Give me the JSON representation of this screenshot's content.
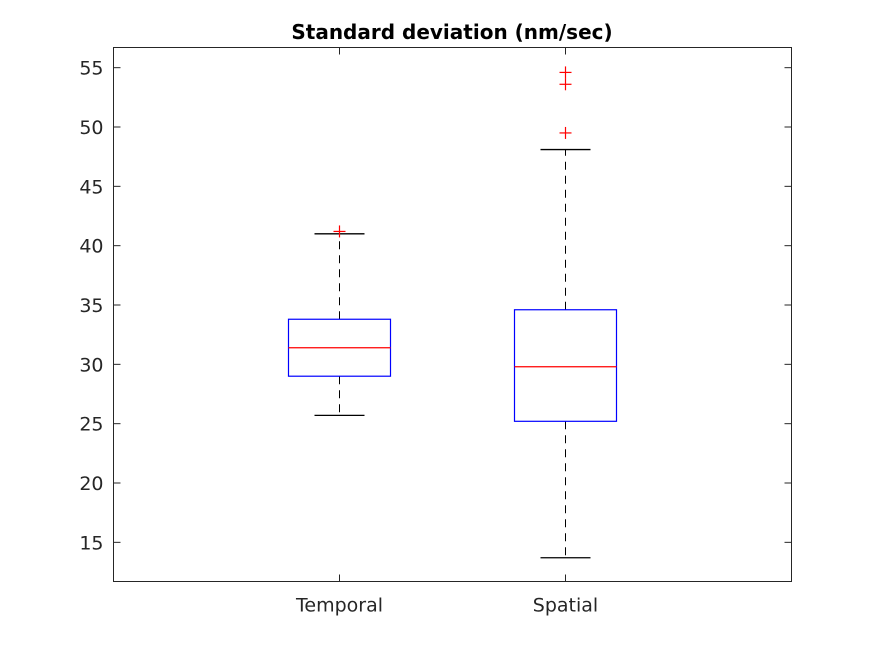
{
  "chart_data": {
    "type": "boxplot",
    "title": "Standard deviation (nm/sec)",
    "xlabel": "",
    "ylabel": "",
    "ylim": [
      11.7,
      56.7
    ],
    "yticks": [
      15,
      20,
      25,
      30,
      35,
      40,
      45,
      50,
      55
    ],
    "ytick_labels": [
      "15",
      "20",
      "25",
      "30",
      "35",
      "40",
      "45",
      "50",
      "55"
    ],
    "grid": false,
    "categories": [
      "Temporal",
      "Spatial"
    ],
    "boxes": [
      {
        "category": "Temporal",
        "whisker_low": 25.7,
        "q1": 29.0,
        "median": 31.4,
        "q3": 33.8,
        "whisker_high": 41.0,
        "outliers": [
          41.2
        ]
      },
      {
        "category": "Spatial",
        "whisker_low": 13.7,
        "q1": 25.2,
        "median": 29.8,
        "q3": 34.6,
        "whisker_high": 48.1,
        "outliers": [
          49.5,
          53.6,
          54.6
        ]
      }
    ],
    "colors": {
      "box": "#0000ff",
      "median": "#ff0000",
      "outlier": "#ff0000",
      "whisker": "#000000",
      "axes": "#262626"
    }
  }
}
